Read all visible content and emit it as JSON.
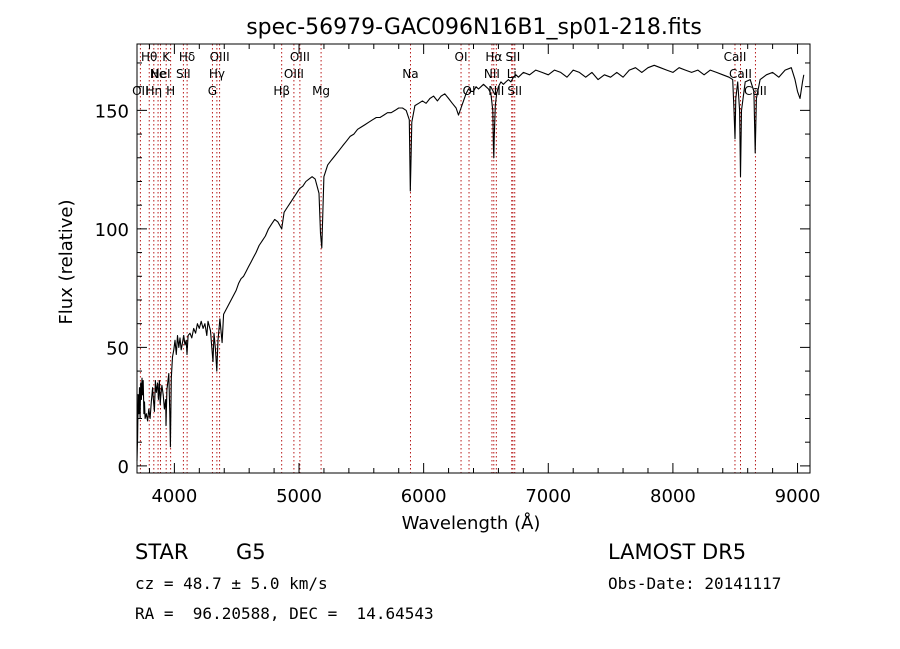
{
  "chart_data": {
    "type": "line",
    "title": "spec-56979-GAC096N16B1_sp01-218.fits",
    "xlabel": "Wavelength (Å)",
    "ylabel": "Flux (relative)",
    "xlim": [
      3700,
      9100
    ],
    "ylim": [
      -3,
      178
    ],
    "xticks": [
      4000,
      5000,
      6000,
      7000,
      8000,
      9000
    ],
    "yticks": [
      0,
      50,
      100,
      150
    ],
    "series": [
      {
        "values": [
          [
            3700,
            2
          ],
          [
            3705,
            12
          ],
          [
            3710,
            30
          ],
          [
            3715,
            22
          ],
          [
            3720,
            33
          ],
          [
            3725,
            20
          ],
          [
            3730,
            35
          ],
          [
            3735,
            28
          ],
          [
            3740,
            37
          ],
          [
            3745,
            30
          ],
          [
            3750,
            36
          ],
          [
            3755,
            22
          ],
          [
            3760,
            27
          ],
          [
            3765,
            20
          ],
          [
            3775,
            22
          ],
          [
            3785,
            19
          ],
          [
            3795,
            24
          ],
          [
            3805,
            20
          ],
          [
            3815,
            27
          ],
          [
            3825,
            33
          ],
          [
            3830,
            29
          ],
          [
            3840,
            23
          ],
          [
            3848,
            36
          ],
          [
            3855,
            31
          ],
          [
            3865,
            35
          ],
          [
            3872,
            28
          ],
          [
            3880,
            36
          ],
          [
            3886,
            26
          ],
          [
            3890,
            29
          ],
          [
            3900,
            34
          ],
          [
            3910,
            30
          ],
          [
            3920,
            24
          ],
          [
            3930,
            28
          ],
          [
            3933,
            17
          ],
          [
            3940,
            32
          ],
          [
            3955,
            39
          ],
          [
            3963,
            22
          ],
          [
            3968,
            8
          ],
          [
            3975,
            37
          ],
          [
            3985,
            46
          ],
          [
            3995,
            49
          ],
          [
            4005,
            53
          ],
          [
            4015,
            47
          ],
          [
            4025,
            55
          ],
          [
            4035,
            50
          ],
          [
            4045,
            54
          ],
          [
            4055,
            49
          ],
          [
            4065,
            52
          ],
          [
            4075,
            55
          ],
          [
            4085,
            51
          ],
          [
            4095,
            53
          ],
          [
            4101,
            47
          ],
          [
            4110,
            55
          ],
          [
            4125,
            56
          ],
          [
            4140,
            54
          ],
          [
            4155,
            58
          ],
          [
            4170,
            56
          ],
          [
            4185,
            60
          ],
          [
            4200,
            58
          ],
          [
            4215,
            61
          ],
          [
            4230,
            58
          ],
          [
            4245,
            60
          ],
          [
            4260,
            55
          ],
          [
            4270,
            61
          ],
          [
            4290,
            57
          ],
          [
            4300,
            50
          ],
          [
            4310,
            44
          ],
          [
            4318,
            56
          ],
          [
            4330,
            49
          ],
          [
            4340,
            40
          ],
          [
            4350,
            53
          ],
          [
            4365,
            62
          ],
          [
            4383,
            52
          ],
          [
            4395,
            64
          ],
          [
            4415,
            66
          ],
          [
            4435,
            68
          ],
          [
            4455,
            70
          ],
          [
            4475,
            72
          ],
          [
            4495,
            74
          ],
          [
            4515,
            77
          ],
          [
            4535,
            79
          ],
          [
            4555,
            80
          ],
          [
            4575,
            82
          ],
          [
            4595,
            84
          ],
          [
            4615,
            86
          ],
          [
            4635,
            88
          ],
          [
            4655,
            90
          ],
          [
            4680,
            93
          ],
          [
            4705,
            95
          ],
          [
            4730,
            97
          ],
          [
            4755,
            100
          ],
          [
            4780,
            102
          ],
          [
            4805,
            104
          ],
          [
            4830,
            103
          ],
          [
            4861,
            100
          ],
          [
            4880,
            107
          ],
          [
            4905,
            109
          ],
          [
            4930,
            111
          ],
          [
            4955,
            113
          ],
          [
            4980,
            115
          ],
          [
            5005,
            117
          ],
          [
            5030,
            118
          ],
          [
            5055,
            120
          ],
          [
            5080,
            121
          ],
          [
            5105,
            122
          ],
          [
            5130,
            121
          ],
          [
            5160,
            115
          ],
          [
            5172,
            98
          ],
          [
            5183,
            92
          ],
          [
            5200,
            122
          ],
          [
            5230,
            127
          ],
          [
            5260,
            129
          ],
          [
            5290,
            131
          ],
          [
            5320,
            133
          ],
          [
            5350,
            135
          ],
          [
            5380,
            137
          ],
          [
            5410,
            139
          ],
          [
            5440,
            140
          ],
          [
            5470,
            142
          ],
          [
            5500,
            143
          ],
          [
            5530,
            144
          ],
          [
            5560,
            145
          ],
          [
            5590,
            146
          ],
          [
            5620,
            147
          ],
          [
            5650,
            147
          ],
          [
            5680,
            148
          ],
          [
            5710,
            149
          ],
          [
            5740,
            149
          ],
          [
            5770,
            150
          ],
          [
            5800,
            151
          ],
          [
            5830,
            151
          ],
          [
            5860,
            150
          ],
          [
            5885,
            146
          ],
          [
            5890,
            128
          ],
          [
            5893,
            116
          ],
          [
            5897,
            125
          ],
          [
            5905,
            145
          ],
          [
            5930,
            152
          ],
          [
            5960,
            153
          ],
          [
            5990,
            154
          ],
          [
            6020,
            153
          ],
          [
            6050,
            155
          ],
          [
            6080,
            156
          ],
          [
            6110,
            154
          ],
          [
            6140,
            156
          ],
          [
            6170,
            157
          ],
          [
            6200,
            155
          ],
          [
            6230,
            153
          ],
          [
            6260,
            151
          ],
          [
            6280,
            148
          ],
          [
            6300,
            151
          ],
          [
            6320,
            154
          ],
          [
            6340,
            157
          ],
          [
            6360,
            159
          ],
          [
            6380,
            158
          ],
          [
            6400,
            158
          ],
          [
            6420,
            160
          ],
          [
            6440,
            159
          ],
          [
            6460,
            160
          ],
          [
            6480,
            161
          ],
          [
            6500,
            160
          ],
          [
            6520,
            159
          ],
          [
            6540,
            157
          ],
          [
            6555,
            150
          ],
          [
            6560,
            135
          ],
          [
            6563,
            130
          ],
          [
            6566,
            138
          ],
          [
            6575,
            152
          ],
          [
            6585,
            157
          ],
          [
            6600,
            160
          ],
          [
            6620,
            162
          ],
          [
            6640,
            161
          ],
          [
            6660,
            162
          ],
          [
            6680,
            163
          ],
          [
            6700,
            162
          ],
          [
            6720,
            164
          ],
          [
            6740,
            165
          ],
          [
            6760,
            164
          ],
          [
            6780,
            165
          ],
          [
            6800,
            166
          ],
          [
            6850,
            165
          ],
          [
            6900,
            167
          ],
          [
            6950,
            166
          ],
          [
            7000,
            165
          ],
          [
            7050,
            167
          ],
          [
            7100,
            166
          ],
          [
            7150,
            164
          ],
          [
            7200,
            167
          ],
          [
            7250,
            166
          ],
          [
            7300,
            164
          ],
          [
            7350,
            166
          ],
          [
            7400,
            163
          ],
          [
            7450,
            165
          ],
          [
            7500,
            164
          ],
          [
            7550,
            166
          ],
          [
            7600,
            164
          ],
          [
            7650,
            167
          ],
          [
            7700,
            168
          ],
          [
            7750,
            166
          ],
          [
            7800,
            168
          ],
          [
            7850,
            169
          ],
          [
            7900,
            168
          ],
          [
            7950,
            167
          ],
          [
            8000,
            166
          ],
          [
            8050,
            168
          ],
          [
            8100,
            167
          ],
          [
            8150,
            166
          ],
          [
            8200,
            167
          ],
          [
            8250,
            165
          ],
          [
            8300,
            167
          ],
          [
            8350,
            166
          ],
          [
            8400,
            165
          ],
          [
            8450,
            164
          ],
          [
            8480,
            163
          ],
          [
            8490,
            150
          ],
          [
            8498,
            138
          ],
          [
            8505,
            155
          ],
          [
            8520,
            162
          ],
          [
            8535,
            150
          ],
          [
            8542,
            122
          ],
          [
            8550,
            150
          ],
          [
            8580,
            162
          ],
          [
            8620,
            163
          ],
          [
            8650,
            158
          ],
          [
            8660,
            132
          ],
          [
            8670,
            155
          ],
          [
            8700,
            163
          ],
          [
            8750,
            165
          ],
          [
            8800,
            166
          ],
          [
            8850,
            164
          ],
          [
            8900,
            167
          ],
          [
            8950,
            168
          ],
          [
            8980,
            163
          ],
          [
            9000,
            158
          ],
          [
            9020,
            155
          ],
          [
            9040,
            162
          ],
          [
            9050,
            165
          ]
        ]
      }
    ],
    "line_markers": [
      {
        "wave": 3727,
        "label": "OII",
        "row": 3
      },
      {
        "wave": 3798,
        "label": "Hθ",
        "row": 1
      },
      {
        "wave": 3835,
        "label": "Hη",
        "row": 3
      },
      {
        "wave": 3869,
        "label": "Ne",
        "row": 2
      },
      {
        "wave": 3889,
        "label": "HeI",
        "row": 2
      },
      {
        "wave": 3934,
        "label": "K",
        "row": 1
      },
      {
        "wave": 3970,
        "label": "H",
        "row": 3
      },
      {
        "wave": 4072,
        "label": "SII",
        "row": 2
      },
      {
        "wave": 4102,
        "label": "Hδ",
        "row": 1
      },
      {
        "wave": 4305,
        "label": "G",
        "row": 3
      },
      {
        "wave": 4341,
        "label": "Hγ",
        "row": 2
      },
      {
        "wave": 4363,
        "label": "OIII",
        "row": 1
      },
      {
        "wave": 4861,
        "label": "Hβ",
        "row": 3
      },
      {
        "wave": 4959,
        "label": "OIII",
        "row": 2
      },
      {
        "wave": 5007,
        "label": "OIII",
        "row": 1
      },
      {
        "wave": 5177,
        "label": "Mg",
        "row": 3
      },
      {
        "wave": 5894,
        "label": "Na",
        "row": 2
      },
      {
        "wave": 6300,
        "label": "OI",
        "row": 1
      },
      {
        "wave": 6364,
        "label": "OI",
        "row": 3
      },
      {
        "wave": 6548,
        "label": "NII",
        "row": 2
      },
      {
        "wave": 6563,
        "label": "Hα",
        "row": 1
      },
      {
        "wave": 6583,
        "label": "NII",
        "row": 3
      },
      {
        "wave": 6707,
        "label": "Li",
        "row": 2
      },
      {
        "wave": 6716,
        "label": "SII",
        "row": 1
      },
      {
        "wave": 6731,
        "label": "SII",
        "row": 3
      },
      {
        "wave": 8498,
        "label": "CaII",
        "row": 1
      },
      {
        "wave": 8542,
        "label": "CaII",
        "row": 2
      },
      {
        "wave": 8662,
        "label": "CaII",
        "row": 3
      }
    ],
    "marker_color": "#b00000",
    "line_color": "#000000"
  },
  "info": {
    "object_type": "STAR",
    "subclass": "G5",
    "survey": "LAMOST DR5",
    "redshift": "cz = 48.7 ± 5.0 km/s",
    "obs_date": "Obs-Date: 20141117",
    "coords": "RA =  96.20588, DEC =  14.64543"
  }
}
